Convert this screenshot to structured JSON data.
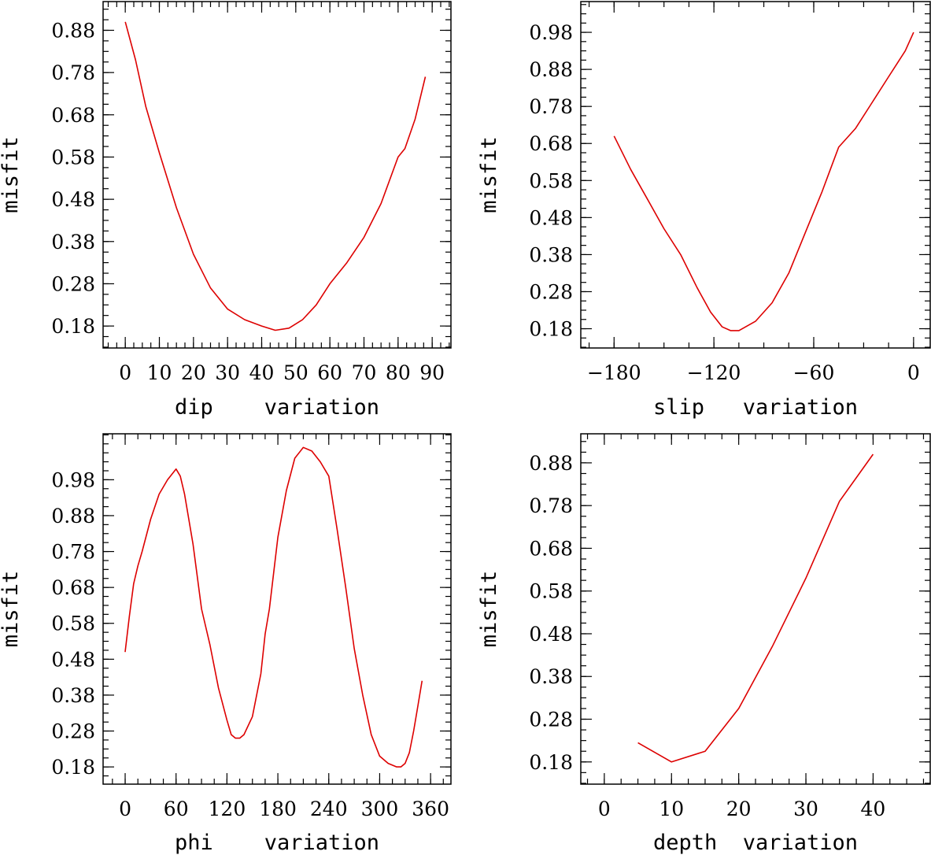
{
  "chart_data": [
    {
      "type": "line",
      "title": "",
      "xlabel": "dip    variation",
      "ylabel": "misfit",
      "xlim": [
        -6.5,
        95.5
      ],
      "ylim": [
        0.128,
        0.948
      ],
      "xticks": [
        0,
        10,
        20,
        30,
        40,
        50,
        60,
        70,
        80,
        90
      ],
      "xtick_labels": [
        "0",
        "10",
        "20",
        "30",
        "40",
        "50",
        "60",
        "70",
        "80",
        "90"
      ],
      "yticks": [
        0.18,
        0.28,
        0.38,
        0.48,
        0.58,
        0.68,
        0.78,
        0.88
      ],
      "ytick_labels": [
        "0.18",
        "0.28",
        "0.38",
        "0.48",
        "0.58",
        "0.68",
        "0.78",
        "0.88"
      ],
      "grid": false,
      "color": "#dd0000",
      "series": [
        {
          "name": "misfit",
          "x": [
            0,
            3,
            6,
            10,
            15,
            20,
            25,
            30,
            35,
            40,
            44,
            48,
            52,
            56,
            60,
            65,
            70,
            75,
            80,
            82,
            85,
            88
          ],
          "y": [
            0.9,
            0.81,
            0.7,
            0.59,
            0.46,
            0.35,
            0.27,
            0.22,
            0.195,
            0.18,
            0.17,
            0.175,
            0.195,
            0.23,
            0.28,
            0.33,
            0.39,
            0.47,
            0.58,
            0.6,
            0.67,
            0.77
          ]
        }
      ]
    },
    {
      "type": "line",
      "title": "",
      "xlabel": "slip   variation",
      "ylabel": "misfit",
      "xlim": [
        -200,
        10
      ],
      "ylim": [
        0.128,
        1.063
      ],
      "xticks": [
        -180,
        -120,
        -60,
        0
      ],
      "xtick_labels": [
        "−180",
        "−120",
        "−60",
        "0"
      ],
      "yticks": [
        0.18,
        0.28,
        0.38,
        0.48,
        0.58,
        0.68,
        0.78,
        0.88,
        0.98
      ],
      "ytick_labels": [
        "0.18",
        "0.28",
        "0.38",
        "0.48",
        "0.58",
        "0.68",
        "0.78",
        "0.88",
        "0.98"
      ],
      "grid": false,
      "color": "#dd0000",
      "series": [
        {
          "name": "misfit",
          "x": [
            -180,
            -170,
            -160,
            -150,
            -140,
            -130,
            -122,
            -115,
            -110,
            -105,
            -95,
            -85,
            -75,
            -65,
            -55,
            -50,
            -45,
            -35,
            -25,
            -15,
            -5,
            0
          ],
          "y": [
            0.7,
            0.61,
            0.53,
            0.45,
            0.38,
            0.29,
            0.225,
            0.185,
            0.175,
            0.175,
            0.2,
            0.25,
            0.33,
            0.44,
            0.55,
            0.61,
            0.67,
            0.72,
            0.79,
            0.86,
            0.93,
            0.98
          ]
        }
      ]
    },
    {
      "type": "line",
      "title": "",
      "xlabel": "phi    variation",
      "ylabel": "misfit",
      "xlim": [
        -26,
        384
      ],
      "ylim": [
        0.132,
        1.108
      ],
      "xticks": [
        0,
        60,
        120,
        180,
        240,
        300,
        360
      ],
      "xtick_labels": [
        "0",
        "60",
        "120",
        "180",
        "240",
        "300",
        "360"
      ],
      "yticks": [
        0.18,
        0.28,
        0.38,
        0.48,
        0.58,
        0.68,
        0.78,
        0.88,
        0.98
      ],
      "ytick_labels": [
        "0.18",
        "0.28",
        "0.38",
        "0.48",
        "0.58",
        "0.68",
        "0.78",
        "0.88",
        "0.98"
      ],
      "grid": false,
      "color": "#dd0000",
      "series": [
        {
          "name": "misfit",
          "x": [
            0,
            5,
            10,
            15,
            20,
            30,
            40,
            50,
            60,
            65,
            70,
            80,
            90,
            100,
            110,
            120,
            125,
            130,
            135,
            140,
            150,
            160,
            165,
            170,
            175,
            180,
            190,
            200,
            210,
            220,
            230,
            240,
            250,
            260,
            270,
            280,
            290,
            300,
            310,
            320,
            325,
            330,
            335,
            340,
            345,
            350
          ],
          "y": [
            0.5,
            0.6,
            0.69,
            0.74,
            0.78,
            0.87,
            0.94,
            0.98,
            1.01,
            0.99,
            0.94,
            0.8,
            0.62,
            0.52,
            0.4,
            0.31,
            0.27,
            0.26,
            0.26,
            0.27,
            0.32,
            0.44,
            0.55,
            0.62,
            0.72,
            0.82,
            0.95,
            1.04,
            1.07,
            1.06,
            1.03,
            0.99,
            0.84,
            0.68,
            0.51,
            0.38,
            0.27,
            0.21,
            0.19,
            0.18,
            0.18,
            0.19,
            0.22,
            0.28,
            0.35,
            0.42
          ]
        }
      ]
    },
    {
      "type": "line",
      "title": "",
      "xlabel": "depth  variation",
      "ylabel": "misfit",
      "xlim": [
        -3.5,
        48.5
      ],
      "ylim": [
        0.128,
        0.948
      ],
      "xticks": [
        0,
        10,
        20,
        30,
        40
      ],
      "xtick_labels": [
        "0",
        "10",
        "20",
        "30",
        "40"
      ],
      "yticks": [
        0.18,
        0.28,
        0.38,
        0.48,
        0.58,
        0.68,
        0.78,
        0.88
      ],
      "ytick_labels": [
        "0.18",
        "0.28",
        "0.38",
        "0.48",
        "0.58",
        "0.68",
        "0.78",
        "0.88"
      ],
      "grid": false,
      "color": "#dd0000",
      "series": [
        {
          "name": "misfit",
          "x": [
            5,
            10,
            15,
            20,
            25,
            30,
            35,
            40
          ],
          "y": [
            0.225,
            0.18,
            0.205,
            0.305,
            0.45,
            0.61,
            0.79,
            0.9
          ]
        }
      ]
    }
  ]
}
